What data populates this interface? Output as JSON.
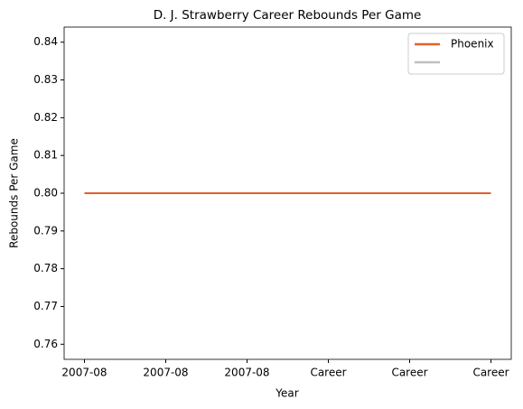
{
  "chart_data": {
    "type": "line",
    "title": "D. J. Strawberry Career Rebounds Per Game",
    "xlabel": "Year",
    "ylabel": "Rebounds Per Game",
    "categories": [
      "2007-08",
      "2007-08",
      "2007-08",
      "Career",
      "Career",
      "Career"
    ],
    "series": [
      {
        "name": "Phoenix",
        "color": "#e0622b",
        "values": [
          0.8,
          0.8,
          0.8,
          0.8,
          0.8,
          0.8
        ]
      },
      {
        "color": "#bfbfbf",
        "values": [
          null,
          null,
          null,
          null,
          null,
          null
        ]
      }
    ],
    "ylim": [
      0.756,
      0.844
    ],
    "yticks": [
      0.76,
      0.77,
      0.78,
      0.79,
      {
        "value": 0.8,
        "label": "0.80"
      },
      0.81,
      0.82,
      0.83,
      0.84
    ],
    "legend": "upper right"
  }
}
